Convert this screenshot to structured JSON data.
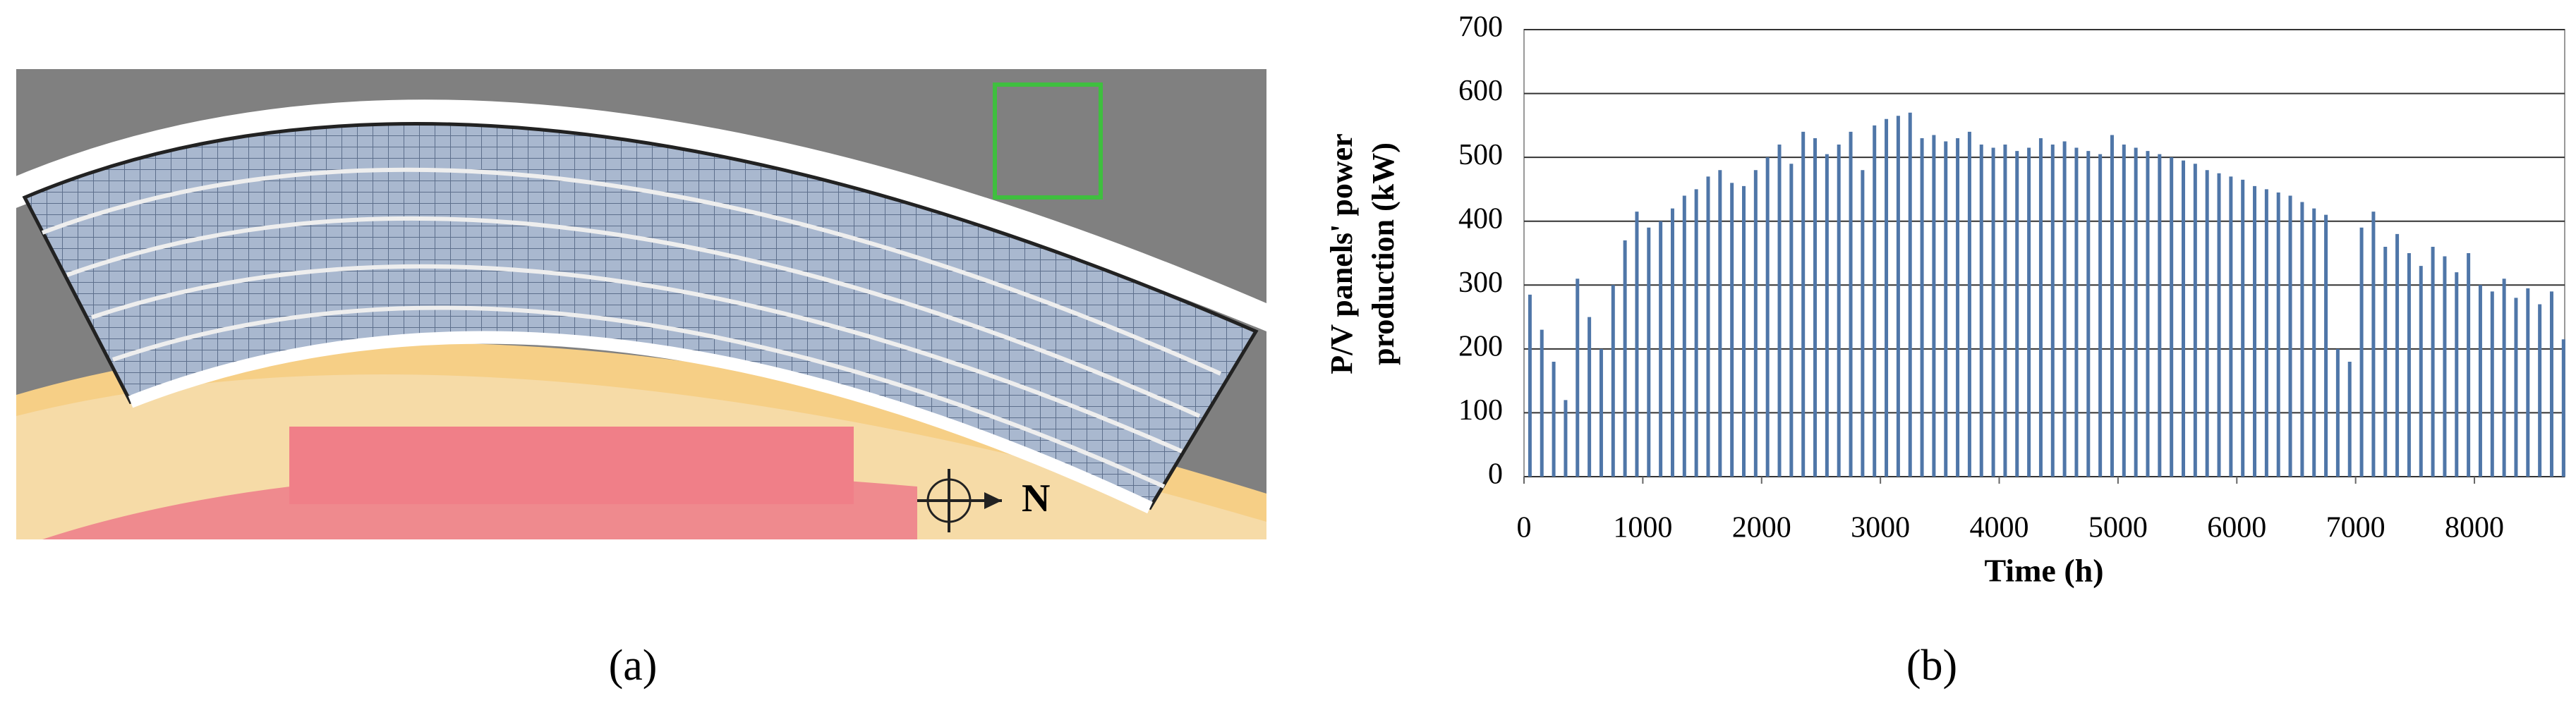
{
  "panel_a": {
    "compass_label": "N",
    "caption": "(a)"
  },
  "chart_data": {
    "type": "bar",
    "caption": "(b)",
    "ylabel": [
      "P/V panels' power",
      "production (kW)"
    ],
    "xlabel": "Time (h)",
    "color": "#4f76a8",
    "grid": true,
    "xlim": [
      0,
      8760
    ],
    "xticks": [
      0,
      1000,
      2000,
      3000,
      4000,
      5000,
      6000,
      7000,
      8000
    ],
    "ylim": [
      0,
      700
    ],
    "yticks": [
      0,
      100,
      200,
      300,
      400,
      500,
      600,
      700
    ],
    "x": [
      50,
      150,
      250,
      350,
      450,
      550,
      650,
      750,
      850,
      950,
      1050,
      1150,
      1250,
      1350,
      1450,
      1550,
      1650,
      1750,
      1850,
      1950,
      2050,
      2150,
      2250,
      2350,
      2450,
      2550,
      2650,
      2750,
      2850,
      2950,
      3050,
      3150,
      3250,
      3350,
      3450,
      3550,
      3650,
      3750,
      3850,
      3950,
      4050,
      4150,
      4250,
      4350,
      4450,
      4550,
      4650,
      4750,
      4850,
      4950,
      5050,
      5150,
      5250,
      5350,
      5450,
      5550,
      5650,
      5750,
      5850,
      5950,
      6050,
      6150,
      6250,
      6350,
      6450,
      6550,
      6650,
      6750,
      6850,
      6950,
      7050,
      7150,
      7250,
      7350,
      7450,
      7550,
      7650,
      7750,
      7850,
      7950,
      8050,
      8150,
      8250,
      8350,
      8450,
      8550,
      8650,
      8750
    ],
    "values": [
      285,
      230,
      180,
      120,
      310,
      250,
      200,
      300,
      370,
      415,
      390,
      400,
      420,
      440,
      450,
      470,
      480,
      460,
      455,
      480,
      500,
      520,
      490,
      540,
      530,
      505,
      520,
      540,
      480,
      550,
      560,
      565,
      570,
      530,
      535,
      525,
      530,
      540,
      520,
      515,
      520,
      510,
      515,
      530,
      520,
      525,
      515,
      510,
      505,
      535,
      520,
      515,
      510,
      505,
      500,
      495,
      490,
      480,
      475,
      470,
      465,
      455,
      450,
      445,
      440,
      430,
      420,
      410,
      200,
      180,
      390,
      415,
      360,
      380,
      350,
      330,
      360,
      345,
      320,
      350,
      300,
      290,
      310,
      280,
      295,
      270,
      290,
      215
    ]
  }
}
